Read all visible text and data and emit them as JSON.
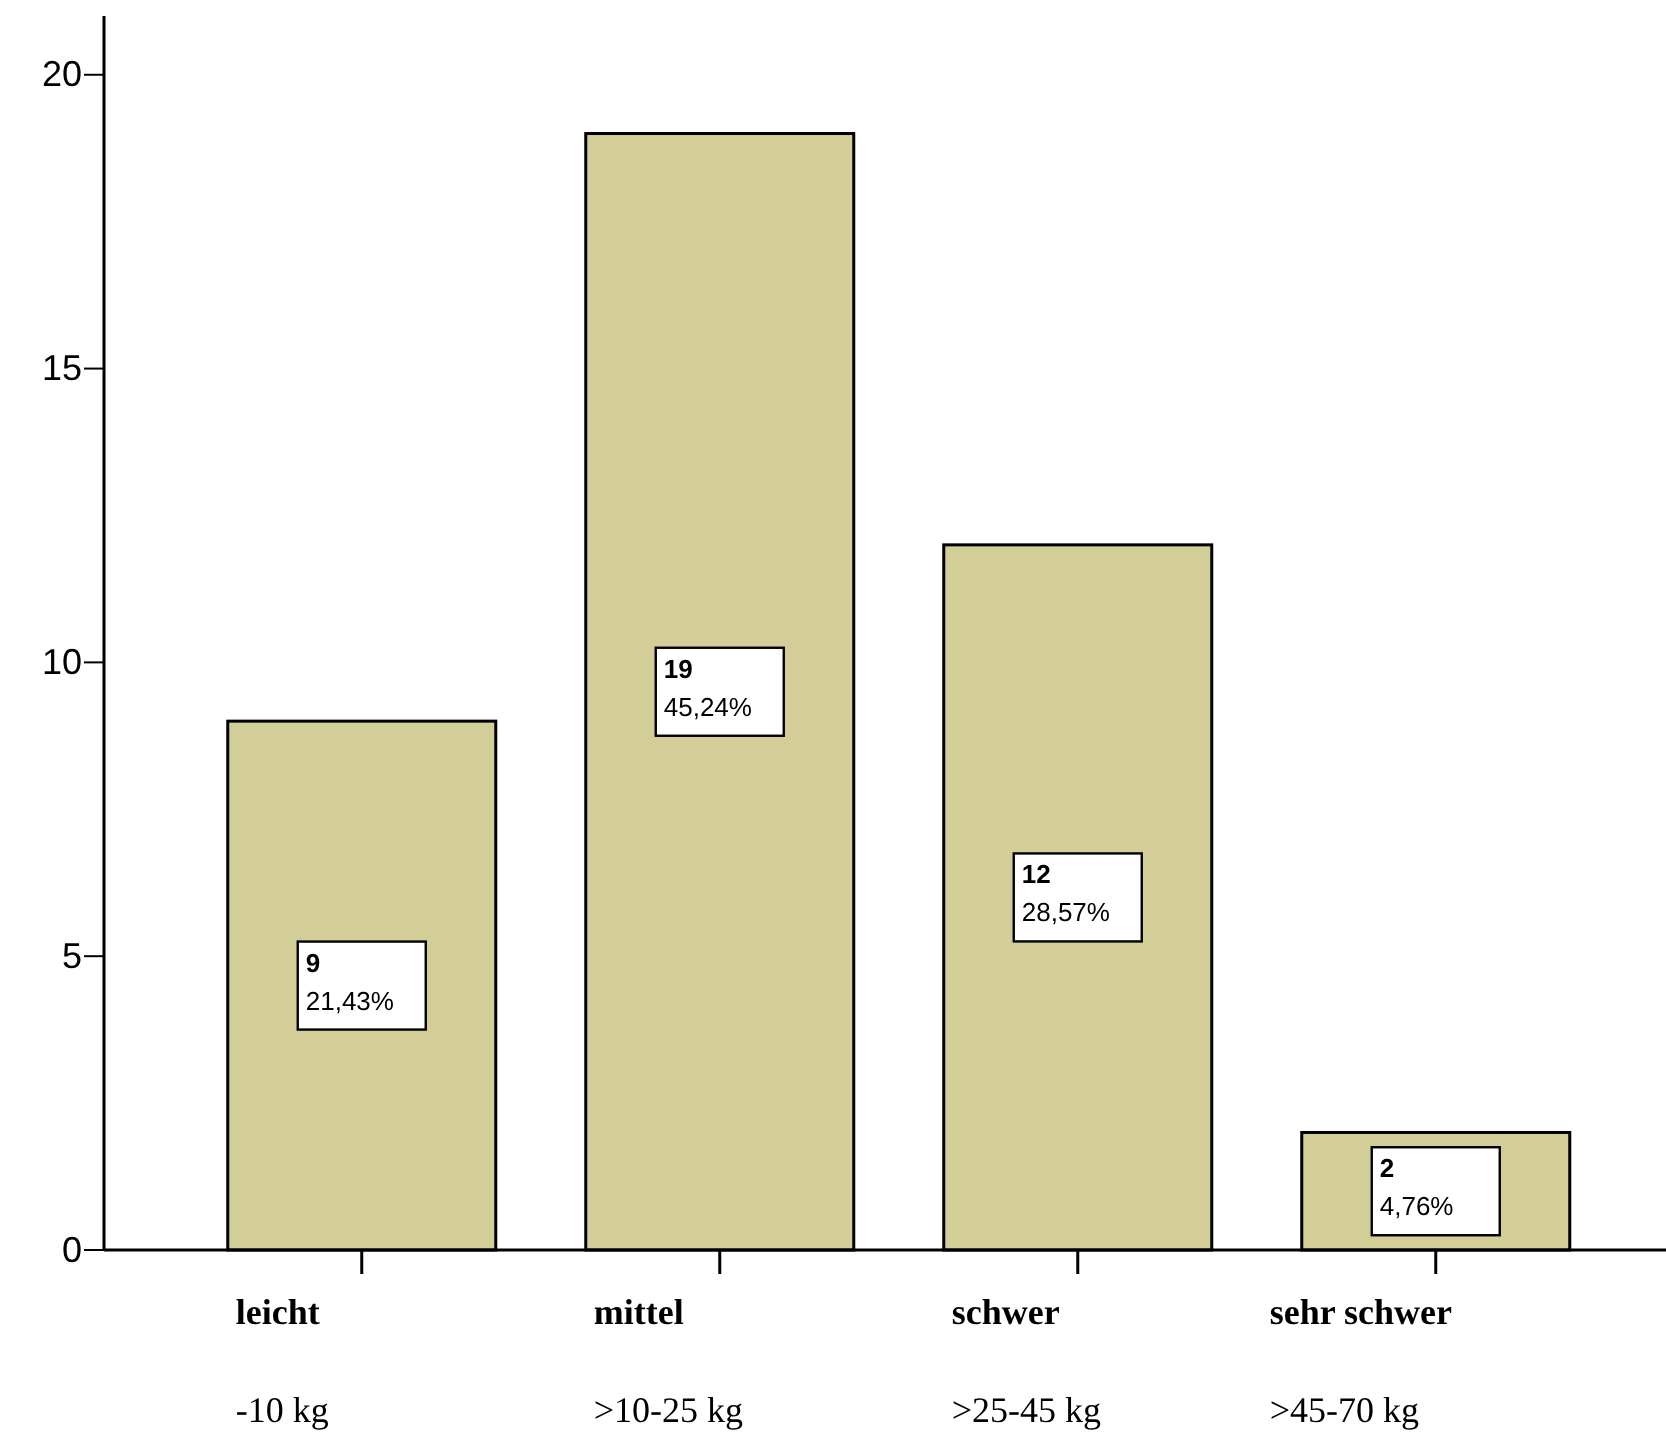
{
  "chart_data": {
    "type": "bar",
    "categories": [
      "leicht\n-10 kg",
      "mittel\n>10-25 kg",
      "schwer\n>25-45 kg",
      "sehr schwer\n>45-70 kg"
    ],
    "values": [
      9,
      19,
      12,
      2
    ],
    "color": "#d3cd98",
    "value_labels": [
      "9\n21,43%",
      "19\n45,24%",
      "12\n28,57%",
      "2\n4,76%"
    ],
    "ylim": [
      0,
      21
    ],
    "yticks": [
      0,
      5,
      10,
      15,
      20
    ],
    "grid": false
  }
}
